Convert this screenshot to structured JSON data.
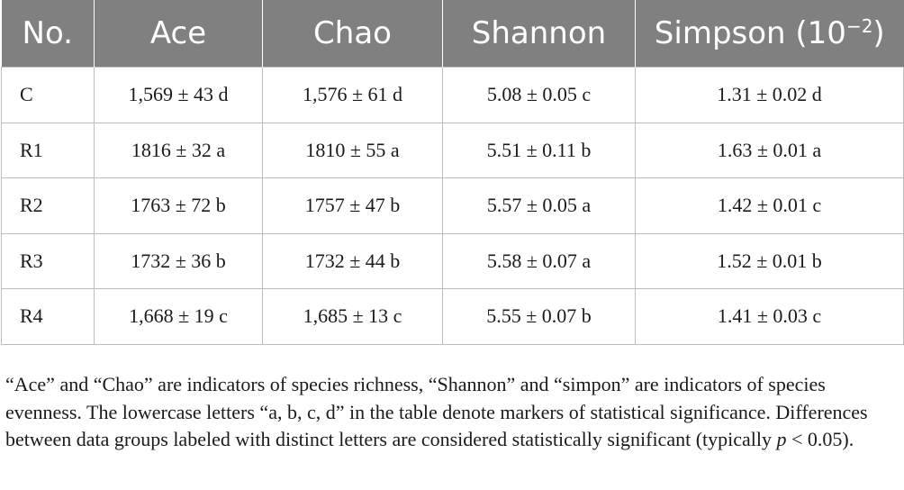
{
  "table": {
    "headers": [
      "No.",
      "Ace",
      "Chao",
      "Shannon",
      "Simpson (10",
      "−2",
      ")"
    ],
    "rows": [
      [
        "C",
        "1,569 ± 43 d",
        "1,576 ± 61 d",
        "5.08 ± 0.05 c",
        "1.31 ± 0.02 d"
      ],
      [
        "R1",
        "1816 ± 32 a",
        "1810 ± 55 a",
        "5.51 ± 0.11 b",
        "1.63 ± 0.01 a"
      ],
      [
        "R2",
        "1763 ± 72 b",
        "1757 ± 47 b",
        "5.57 ± 0.05 a",
        "1.42 ± 0.01 c"
      ],
      [
        "R3",
        "1732 ± 36 b",
        "1732 ± 44 b",
        "5.58 ± 0.07 a",
        "1.52 ± 0.01 b"
      ],
      [
        "R4",
        "1,668 ± 19 c",
        "1,685 ± 13 c",
        "5.55 ± 0.07 b",
        "1.41 ± 0.03 c"
      ]
    ]
  },
  "footnote": {
    "text_a": "“Ace” and “Chao” are indicators of species richness, “Shannon” and “simpon” are indicators of species evenness. The lowercase letters “a, b, c, d” in the table denote markers of statistical significance. Differences between data groups labeled with distinct letters are considered statistically significant (typically ",
    "p": "p",
    "text_b": " < 0.05)."
  },
  "colors": {
    "header_bg": "#808080",
    "header_text": "#ffffff",
    "border": "#bdbdbd",
    "body_text": "#1a1a1a"
  }
}
